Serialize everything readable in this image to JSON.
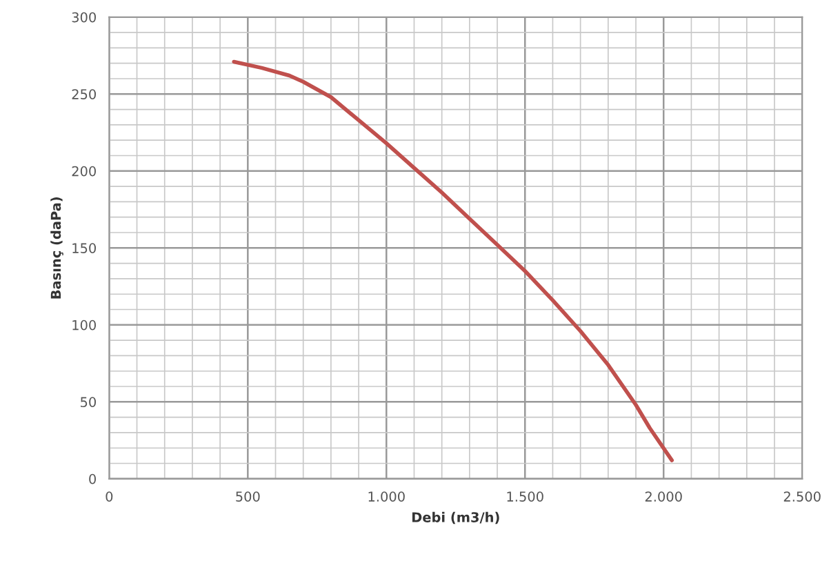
{
  "chart_data": {
    "type": "line",
    "xlabel": "Debi (m3/h)",
    "ylabel": "Basınç (daPa)",
    "x": [
      450,
      550,
      650,
      700,
      800,
      900,
      1000,
      1100,
      1200,
      1300,
      1400,
      1500,
      1600,
      1700,
      1800,
      1900,
      1950,
      2030
    ],
    "series": [
      {
        "color": "#c0504d",
        "values": [
          271,
          267,
          262,
          258,
          248,
          233,
          218,
          202,
          186,
          169,
          152,
          135,
          116,
          96,
          74,
          48,
          33,
          12
        ]
      }
    ],
    "xlim": [
      0,
      2500
    ],
    "xticks": [
      0,
      500,
      {
        "value": 1000,
        "label": "1.000"
      },
      {
        "value": 1500,
        "label": "1.500"
      },
      {
        "value": 2000,
        "label": "2.000"
      },
      {
        "value": 2500,
        "label": "2.500"
      }
    ],
    "ylim": [
      0,
      300
    ],
    "yticks": [
      0,
      50,
      100,
      150,
      200,
      250,
      300
    ],
    "grid": true,
    "legend": false,
    "marker": "none",
    "line_style": "solid"
  }
}
